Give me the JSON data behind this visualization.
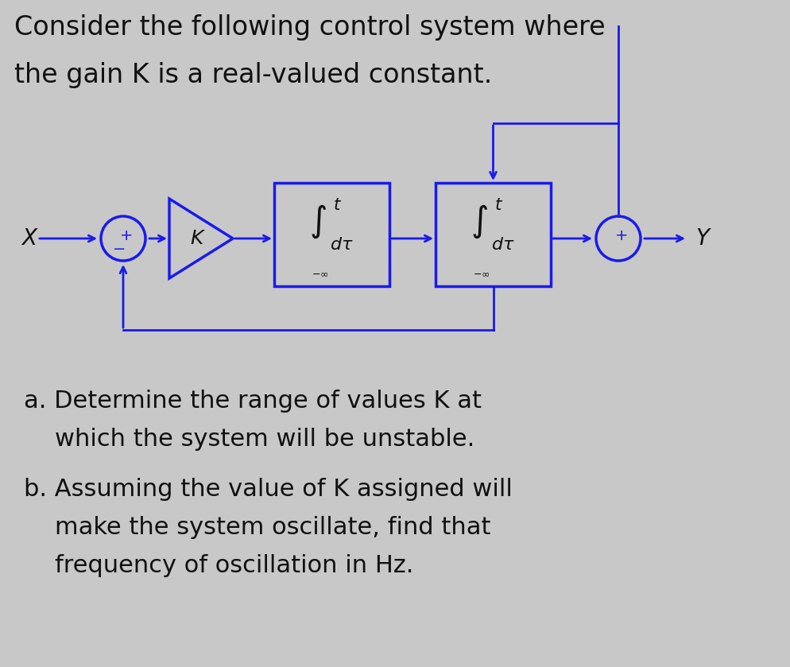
{
  "bg_color": "#c8c8c8",
  "diagram_color": "#1a1aee",
  "text_color": "#111111",
  "title_line1": "Consider the following control system where",
  "title_line2": "the gain K is a real-valued constant.",
  "question_a1": "a. Determine the range of values K at",
  "question_a2": "    which the system will be unstable.",
  "question_b1": "b. Assuming the value of K assigned will",
  "question_b2": "    make the system oscillate, find that",
  "question_b3": "    frequency of oscillation in Hz.",
  "title_fontsize": 24,
  "body_fontsize": 22,
  "diagram_lw": 2.0,
  "fig_w": 9.94,
  "fig_h": 8.39,
  "dpi": 100
}
